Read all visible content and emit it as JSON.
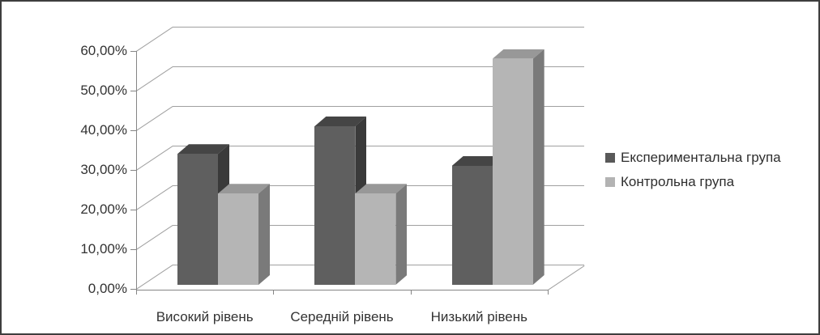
{
  "window": {
    "background": "#ffffff",
    "border_color": "#3e3e3e"
  },
  "chart_data": {
    "type": "bar",
    "projection": "3d-clustered-column",
    "title": "",
    "xlabel": "",
    "ylabel": "",
    "categories": [
      "Високий рівень",
      "Середній рівень",
      "Низький рівень"
    ],
    "series": [
      {
        "name": "Експериментальна група",
        "values": [
          33,
          40,
          30
        ],
        "value_unit": "%",
        "front_color": "#5f5f5f",
        "top_color": "#454545",
        "side_color": "#3a3a3a",
        "legend_color": "#595959"
      },
      {
        "name": "Контрольна група",
        "values": [
          23,
          23,
          57
        ],
        "value_unit": "%",
        "front_color": "#b5b5b5",
        "top_color": "#989898",
        "side_color": "#7a7a7a",
        "legend_color": "#b3b3b3"
      }
    ],
    "ylim": [
      0,
      60
    ],
    "ytick_step": 10,
    "ytick_labels": [
      "0,00%",
      "10,00%",
      "20,00%",
      "30,00%",
      "40,00%",
      "50,00%",
      "60,00%"
    ],
    "legend_position": "right",
    "grid": true,
    "text_color": "#333333",
    "gridline_color": "#a0a0a0",
    "axis_color": "#858585"
  }
}
